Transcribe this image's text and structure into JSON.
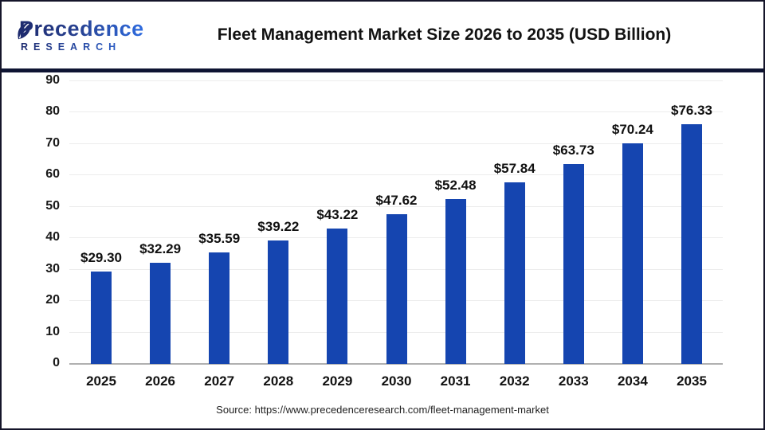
{
  "header": {
    "logo": {
      "name": "Precedence",
      "subtitle": "RESEARCH",
      "color_dark": "#1d2a6e",
      "color_light": "#2f6ce0"
    },
    "title": "Fleet Management Market Size 2026 to 2035 (USD Billion)"
  },
  "chart_data": {
    "type": "bar",
    "title": "Fleet Management Market Size 2026 to 2035 (USD Billion)",
    "categories": [
      "2025",
      "2026",
      "2027",
      "2028",
      "2029",
      "2030",
      "2031",
      "2032",
      "2033",
      "2034",
      "2035"
    ],
    "values": [
      29.3,
      32.29,
      35.59,
      39.22,
      43.22,
      47.62,
      52.48,
      57.84,
      63.73,
      70.24,
      76.33
    ],
    "value_labels": [
      "$29.30",
      "$32.29",
      "$35.59",
      "$39.22",
      "$43.22",
      "$47.62",
      "$52.48",
      "$57.84",
      "$63.73",
      "$70.24",
      "$76.33"
    ],
    "xlabel": "",
    "ylabel": "",
    "ylim": [
      0,
      90
    ],
    "yticks": [
      0,
      10,
      20,
      30,
      40,
      50,
      60,
      70,
      80,
      90
    ],
    "grid": "horizontal",
    "legend": "none",
    "bar_color": "#1545b0"
  },
  "footer": {
    "source": "Source: https://www.precedenceresearch.com/fleet-management-market"
  },
  "colors": {
    "divider_navy": "#0e1433",
    "frame_border": "#15152a",
    "gridline": "#ececec",
    "axis_line": "#b0b0b0",
    "background": "#ffffff"
  }
}
